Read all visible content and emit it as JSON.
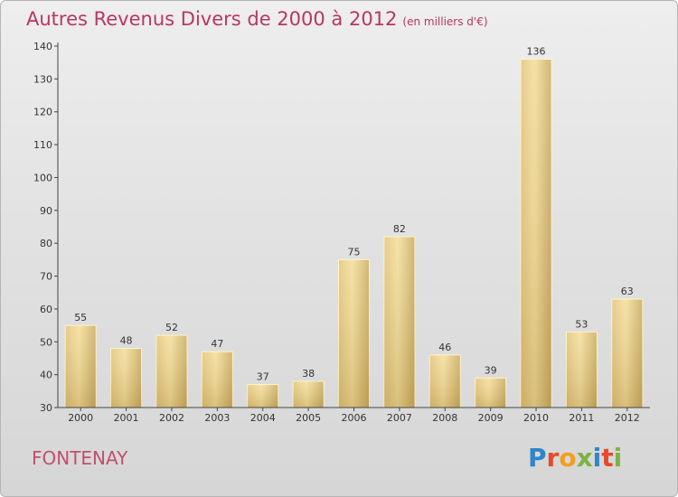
{
  "chart_data": {
    "type": "bar",
    "title": "Autres Revenus Divers de 2000 à 2012",
    "subtitle": "(en milliers d'€)",
    "categories": [
      "2000",
      "2001",
      "2002",
      "2003",
      "2004",
      "2005",
      "2006",
      "2007",
      "2008",
      "2009",
      "2010",
      "2011",
      "2012"
    ],
    "values": [
      55,
      48,
      52,
      47,
      37,
      38,
      75,
      82,
      46,
      39,
      136,
      53,
      63
    ],
    "ylim": [
      30,
      140
    ],
    "yticks": [
      30,
      40,
      50,
      60,
      70,
      80,
      90,
      100,
      110,
      120,
      130,
      140
    ],
    "grid": false,
    "bar_color": "#e8cc80",
    "bar_edge_color": "#fff3c4"
  },
  "footer": {
    "commune": "FONTENAY",
    "logo": "Proxiti"
  },
  "colors": {
    "title": "#b8375e",
    "commune": "#c0506e"
  }
}
